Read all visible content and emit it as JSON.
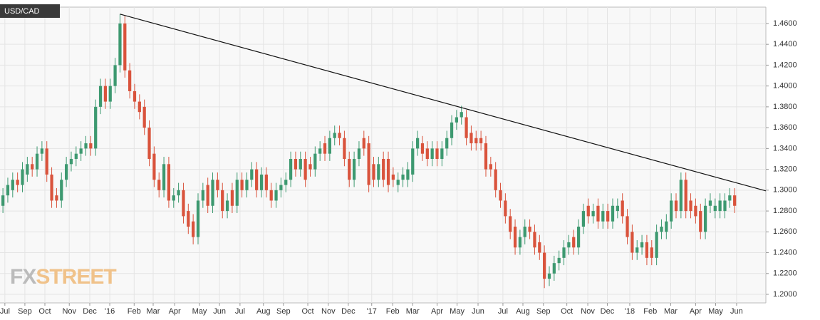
{
  "chart_data": {
    "type": "candlestick",
    "title": "USD/CAD",
    "watermark": [
      "FX",
      "STREET"
    ],
    "up_color": "#3d9970",
    "down_color": "#d9533c",
    "grid": true,
    "xlim": [
      -0.6,
      156.4
    ],
    "ylim": [
      1.1918,
      1.4757
    ],
    "yticks": [
      {
        "value": 1.2,
        "label": "1.2000"
      },
      {
        "value": 1.22,
        "label": "1.2200"
      },
      {
        "value": 1.24,
        "label": "1.2400"
      },
      {
        "value": 1.26,
        "label": "1.2600"
      },
      {
        "value": 1.28,
        "label": "1.2800"
      },
      {
        "value": 1.3,
        "label": "1.3000"
      },
      {
        "value": 1.32,
        "label": "1.3200"
      },
      {
        "value": 1.34,
        "label": "1.3400"
      },
      {
        "value": 1.36,
        "label": "1.3600"
      },
      {
        "value": 1.38,
        "label": "1.3800"
      },
      {
        "value": 1.4,
        "label": "1.4000"
      },
      {
        "value": 1.42,
        "label": "1.4200"
      },
      {
        "value": 1.44,
        "label": "1.4400"
      },
      {
        "value": 1.46,
        "label": "1.4600"
      }
    ],
    "xticks": [
      {
        "value": 0.4,
        "label": "Jul"
      },
      {
        "value": 4.5,
        "label": "Sep"
      },
      {
        "value": 8.6,
        "label": "Oct"
      },
      {
        "value": 13.6,
        "label": "Nov"
      },
      {
        "value": 17.8,
        "label": "Dec"
      },
      {
        "value": 21.9,
        "label": "'16"
      },
      {
        "value": 26.9,
        "label": "Feb"
      },
      {
        "value": 30.8,
        "label": "Mar"
      },
      {
        "value": 35.2,
        "label": "Apr"
      },
      {
        "value": 40.3,
        "label": "May"
      },
      {
        "value": 44.4,
        "label": "Jun"
      },
      {
        "value": 48.6,
        "label": "Jul"
      },
      {
        "value": 53.4,
        "label": "Aug"
      },
      {
        "value": 57.5,
        "label": "Sep"
      },
      {
        "value": 62.5,
        "label": "Oct"
      },
      {
        "value": 66.7,
        "label": "Nov"
      },
      {
        "value": 70.8,
        "label": "Dec"
      },
      {
        "value": 75.6,
        "label": "'17"
      },
      {
        "value": 79.9,
        "label": "Feb"
      },
      {
        "value": 84,
        "label": "Mar"
      },
      {
        "value": 89,
        "label": "Apr"
      },
      {
        "value": 93.1,
        "label": "May"
      },
      {
        "value": 97.4,
        "label": "Jun"
      },
      {
        "value": 102.5,
        "label": "Jul"
      },
      {
        "value": 106.6,
        "label": "Aug"
      },
      {
        "value": 110.8,
        "label": "Sep"
      },
      {
        "value": 115.6,
        "label": "Oct"
      },
      {
        "value": 119.9,
        "label": "Nov"
      },
      {
        "value": 123.9,
        "label": "Dec"
      },
      {
        "value": 128.5,
        "label": "'18"
      },
      {
        "value": 132.7,
        "label": "Feb"
      },
      {
        "value": 136.9,
        "label": "Mar"
      },
      {
        "value": 142,
        "label": "Apr"
      },
      {
        "value": 146.1,
        "label": "May"
      },
      {
        "value": 150.4,
        "label": "Jun"
      }
    ],
    "open": [
      1.285,
      1.295,
      1.3,
      1.31,
      1.305,
      1.315,
      1.325,
      1.32,
      1.335,
      1.34,
      1.315,
      1.295,
      1.29,
      1.31,
      1.325,
      1.33,
      1.335,
      1.34,
      1.345,
      1.34,
      1.38,
      1.4,
      1.385,
      1.4,
      1.42,
      1.46,
      1.415,
      1.395,
      1.385,
      1.38,
      1.36,
      1.335,
      1.31,
      1.3,
      1.325,
      1.29,
      1.295,
      1.3,
      1.28,
      1.27,
      1.255,
      1.29,
      1.305,
      1.285,
      1.31,
      1.3,
      1.28,
      1.3,
      1.285,
      1.31,
      1.3,
      1.31,
      1.32,
      1.3,
      1.315,
      1.3,
      1.29,
      1.3,
      1.305,
      1.31,
      1.33,
      1.32,
      1.33,
      1.325,
      1.32,
      1.335,
      1.345,
      1.335,
      1.35,
      1.355,
      1.35,
      1.33,
      1.31,
      1.33,
      1.35,
      1.345,
      1.325,
      1.31,
      1.33,
      1.33,
      1.315,
      1.305,
      1.31,
      1.31,
      1.315,
      1.34,
      1.345,
      1.34,
      1.33,
      1.34,
      1.33,
      1.34,
      1.35,
      1.365,
      1.37,
      1.37,
      1.355,
      1.35,
      1.35,
      1.345,
      1.325,
      1.32,
      1.3,
      1.29,
      1.275,
      1.265,
      1.245,
      1.255,
      1.265,
      1.26,
      1.25,
      1.24,
      1.215,
      1.22,
      1.23,
      1.235,
      1.245,
      1.255,
      1.245,
      1.265,
      1.285,
      1.275,
      1.285,
      1.27,
      1.28,
      1.27,
      1.28,
      1.29,
      1.275,
      1.26,
      1.24,
      1.245,
      1.25,
      1.245,
      1.235,
      1.26,
      1.26,
      1.27,
      1.29,
      1.28,
      1.31,
      1.29,
      1.285,
      1.28,
      1.26,
      1.285,
      1.28,
      1.28,
      1.28,
      1.29,
      1.295
    ],
    "high": [
      1.302,
      1.312,
      1.317,
      1.317,
      1.327,
      1.332,
      1.332,
      1.342,
      1.347,
      1.347,
      1.322,
      1.302,
      1.317,
      1.332,
      1.337,
      1.342,
      1.347,
      1.352,
      1.352,
      1.387,
      1.407,
      1.407,
      1.407,
      1.427,
      1.469,
      1.467,
      1.422,
      1.402,
      1.392,
      1.387,
      1.367,
      1.342,
      1.317,
      1.332,
      1.332,
      1.302,
      1.307,
      1.307,
      1.287,
      1.277,
      1.297,
      1.307,
      1.312,
      1.317,
      1.317,
      1.307,
      1.297,
      1.307,
      1.317,
      1.317,
      1.317,
      1.327,
      1.327,
      1.322,
      1.322,
      1.307,
      1.307,
      1.312,
      1.317,
      1.337,
      1.337,
      1.337,
      1.337,
      1.332,
      1.342,
      1.347,
      1.352,
      1.357,
      1.362,
      1.362,
      1.357,
      1.337,
      1.337,
      1.347,
      1.357,
      1.352,
      1.332,
      1.332,
      1.337,
      1.337,
      1.322,
      1.317,
      1.322,
      1.327,
      1.347,
      1.357,
      1.352,
      1.347,
      1.347,
      1.347,
      1.347,
      1.357,
      1.372,
      1.377,
      1.381,
      1.377,
      1.362,
      1.357,
      1.357,
      1.352,
      1.332,
      1.327,
      1.307,
      1.297,
      1.282,
      1.272,
      1.262,
      1.272,
      1.272,
      1.267,
      1.257,
      1.247,
      1.227,
      1.237,
      1.242,
      1.252,
      1.257,
      1.262,
      1.272,
      1.287,
      1.292,
      1.287,
      1.292,
      1.287,
      1.287,
      1.292,
      1.292,
      1.297,
      1.282,
      1.267,
      1.252,
      1.257,
      1.257,
      1.252,
      1.267,
      1.272,
      1.277,
      1.297,
      1.297,
      1.317,
      1.317,
      1.297,
      1.292,
      1.287,
      1.292,
      1.297,
      1.292,
      1.297,
      1.297,
      1.302,
      1.302
    ],
    "low": [
      1.278,
      1.288,
      1.293,
      1.298,
      1.298,
      1.308,
      1.313,
      1.313,
      1.328,
      1.308,
      1.283,
      1.283,
      1.283,
      1.303,
      1.318,
      1.323,
      1.328,
      1.333,
      1.333,
      1.333,
      1.373,
      1.378,
      1.378,
      1.393,
      1.413,
      1.408,
      1.388,
      1.378,
      1.368,
      1.353,
      1.323,
      1.303,
      1.293,
      1.293,
      1.283,
      1.283,
      1.288,
      1.268,
      1.258,
      1.248,
      1.248,
      1.283,
      1.278,
      1.278,
      1.293,
      1.273,
      1.273,
      1.278,
      1.278,
      1.293,
      1.293,
      1.303,
      1.293,
      1.293,
      1.293,
      1.283,
      1.283,
      1.293,
      1.298,
      1.303,
      1.313,
      1.313,
      1.303,
      1.313,
      1.313,
      1.328,
      1.328,
      1.328,
      1.343,
      1.343,
      1.323,
      1.303,
      1.303,
      1.323,
      1.333,
      1.298,
      1.303,
      1.303,
      1.303,
      1.298,
      1.303,
      1.298,
      1.303,
      1.303,
      1.308,
      1.333,
      1.328,
      1.323,
      1.323,
      1.323,
      1.323,
      1.333,
      1.343,
      1.358,
      1.363,
      1.343,
      1.338,
      1.338,
      1.338,
      1.313,
      1.313,
      1.293,
      1.283,
      1.268,
      1.253,
      1.238,
      1.238,
      1.248,
      1.253,
      1.238,
      1.233,
      1.206,
      1.208,
      1.213,
      1.223,
      1.228,
      1.238,
      1.238,
      1.238,
      1.258,
      1.268,
      1.268,
      1.263,
      1.263,
      1.263,
      1.263,
      1.273,
      1.268,
      1.248,
      1.233,
      1.233,
      1.238,
      1.228,
      1.228,
      1.228,
      1.253,
      1.253,
      1.263,
      1.273,
      1.273,
      1.273,
      1.273,
      1.268,
      1.253,
      1.253,
      1.278,
      1.273,
      1.273,
      1.273,
      1.283,
      1.278
    ],
    "close": [
      1.295,
      1.305,
      1.31,
      1.305,
      1.32,
      1.325,
      1.32,
      1.335,
      1.34,
      1.315,
      1.29,
      1.29,
      1.31,
      1.325,
      1.33,
      1.335,
      1.34,
      1.345,
      1.34,
      1.38,
      1.4,
      1.385,
      1.4,
      1.42,
      1.46,
      1.415,
      1.395,
      1.385,
      1.375,
      1.36,
      1.33,
      1.31,
      1.3,
      1.325,
      1.29,
      1.295,
      1.3,
      1.275,
      1.265,
      1.255,
      1.29,
      1.3,
      1.285,
      1.31,
      1.3,
      1.28,
      1.29,
      1.285,
      1.31,
      1.3,
      1.31,
      1.32,
      1.3,
      1.315,
      1.3,
      1.29,
      1.3,
      1.305,
      1.31,
      1.33,
      1.32,
      1.33,
      1.31,
      1.32,
      1.335,
      1.34,
      1.335,
      1.35,
      1.355,
      1.35,
      1.33,
      1.31,
      1.33,
      1.34,
      1.34,
      1.305,
      1.31,
      1.325,
      1.31,
      1.305,
      1.31,
      1.31,
      1.315,
      1.32,
      1.34,
      1.35,
      1.335,
      1.33,
      1.34,
      1.33,
      1.34,
      1.35,
      1.365,
      1.37,
      1.375,
      1.35,
      1.345,
      1.345,
      1.345,
      1.32,
      1.32,
      1.3,
      1.29,
      1.275,
      1.26,
      1.245,
      1.255,
      1.265,
      1.26,
      1.245,
      1.24,
      1.215,
      1.22,
      1.23,
      1.235,
      1.245,
      1.25,
      1.245,
      1.265,
      1.28,
      1.275,
      1.28,
      1.27,
      1.28,
      1.27,
      1.285,
      1.285,
      1.275,
      1.255,
      1.24,
      1.245,
      1.25,
      1.235,
      1.235,
      1.26,
      1.265,
      1.27,
      1.29,
      1.28,
      1.31,
      1.28,
      1.28,
      1.275,
      1.26,
      1.285,
      1.29,
      1.285,
      1.29,
      1.29,
      1.295,
      1.285
    ],
    "trendline": {
      "color": "#111111",
      "x": [
        24,
        156.4
      ],
      "y": [
        1.469,
        1.2993
      ]
    }
  }
}
